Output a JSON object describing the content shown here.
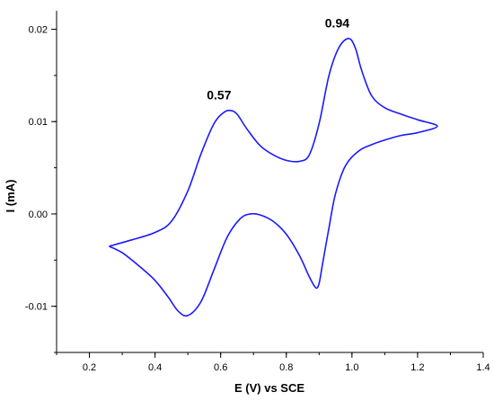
{
  "chart_data": {
    "type": "line",
    "title": "",
    "xlabel": "E (V) vs SCE",
    "ylabel": "I (mA)",
    "xlim": [
      0.1,
      1.4
    ],
    "ylim": [
      -0.015,
      0.022
    ],
    "grid": false,
    "xticks": [
      0.2,
      0.4,
      0.6,
      0.8,
      1.0,
      1.2,
      1.4
    ],
    "xtick_labels": [
      "0.2",
      "0.4",
      "0.6",
      "0.8",
      "1.0",
      "1.2",
      "1.4"
    ],
    "yticks": [
      -0.01,
      0.0,
      0.01,
      0.02
    ],
    "ytick_labels": [
      "-0.01",
      "0.00",
      "0.01",
      "0.02"
    ],
    "annotations": [
      {
        "text": "0.57",
        "x": 0.595,
        "y": 0.0124
      },
      {
        "text": "0.94",
        "x": 0.955,
        "y": 0.0202
      }
    ],
    "series": [
      {
        "color": "#1a1aff",
        "x": [
          0.26,
          0.33,
          0.4,
          0.45,
          0.5,
          0.54,
          0.58,
          0.61,
          0.63,
          0.65,
          0.68,
          0.72,
          0.76,
          0.8,
          0.84,
          0.87,
          0.9,
          0.93,
          0.96,
          0.99,
          1.01,
          1.03,
          1.06,
          1.1,
          1.15,
          1.2,
          1.26,
          1.2,
          1.15,
          1.1,
          1.06,
          1.02,
          0.98,
          0.95,
          0.93,
          0.91,
          0.9,
          0.89,
          0.87,
          0.84,
          0.8,
          0.76,
          0.72,
          0.69,
          0.66,
          0.62,
          0.58,
          0.54,
          0.5,
          0.47,
          0.44,
          0.4,
          0.35,
          0.3,
          0.26
        ],
        "y": [
          -0.0035,
          -0.0028,
          -0.002,
          -0.0008,
          0.0025,
          0.0065,
          0.0098,
          0.011,
          0.0112,
          0.0108,
          0.0092,
          0.0074,
          0.0064,
          0.0058,
          0.0057,
          0.0064,
          0.0098,
          0.015,
          0.018,
          0.019,
          0.018,
          0.0155,
          0.0128,
          0.0115,
          0.0108,
          0.0102,
          0.0095,
          0.0088,
          0.0085,
          0.008,
          0.0075,
          0.0068,
          0.0052,
          0.0022,
          -0.0015,
          -0.0055,
          -0.0075,
          -0.008,
          -0.0068,
          -0.0045,
          -0.0022,
          -0.0008,
          -0.0001,
          0.0,
          -0.0005,
          -0.0025,
          -0.006,
          -0.0095,
          -0.011,
          -0.0105,
          -0.009,
          -0.0072,
          -0.0056,
          -0.0042,
          -0.0035
        ]
      }
    ]
  }
}
